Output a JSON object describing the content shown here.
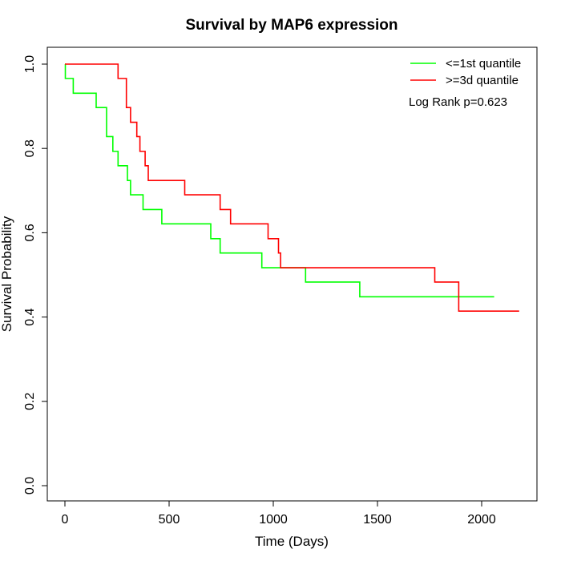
{
  "chart_data": {
    "type": "line",
    "title": "Survival by MAP6 expression",
    "xlabel": "Time (Days)",
    "ylabel": "Survival Probability",
    "xlim": [
      0,
      2180
    ],
    "ylim": [
      0,
      1.0
    ],
    "x_ticks": [
      0,
      500,
      1000,
      1500,
      2000
    ],
    "x_tick_labels": [
      "0",
      "500",
      "1000",
      "1500",
      "2000"
    ],
    "y_ticks": [
      0,
      0.2,
      0.4,
      0.6,
      0.8,
      1.0
    ],
    "y_tick_labels": [
      "0.0",
      "0.2",
      "0.4",
      "0.6",
      "0.8",
      "1.0"
    ],
    "grid": false,
    "legend_position": "top-right",
    "annotation": "Log Rank p=0.623",
    "series": [
      {
        "name": "<=1st quantile",
        "color": "#00ff00",
        "step": true,
        "points": [
          [
            0,
            1.0
          ],
          [
            2,
            0.966
          ],
          [
            40,
            0.931
          ],
          [
            150,
            0.897
          ],
          [
            200,
            0.828
          ],
          [
            230,
            0.793
          ],
          [
            255,
            0.759
          ],
          [
            300,
            0.724
          ],
          [
            315,
            0.69
          ],
          [
            375,
            0.655
          ],
          [
            465,
            0.621
          ],
          [
            700,
            0.586
          ],
          [
            745,
            0.552
          ],
          [
            945,
            0.517
          ],
          [
            1155,
            0.483
          ],
          [
            1415,
            0.448
          ],
          [
            2060,
            0.448
          ]
        ]
      },
      {
        "name": ">=3d quantile",
        "color": "#ff0000",
        "step": true,
        "points": [
          [
            0,
            1.0
          ],
          [
            255,
            0.966
          ],
          [
            295,
            0.897
          ],
          [
            315,
            0.862
          ],
          [
            345,
            0.828
          ],
          [
            360,
            0.793
          ],
          [
            385,
            0.759
          ],
          [
            400,
            0.724
          ],
          [
            575,
            0.69
          ],
          [
            745,
            0.655
          ],
          [
            795,
            0.621
          ],
          [
            975,
            0.586
          ],
          [
            1025,
            0.552
          ],
          [
            1035,
            0.517
          ],
          [
            1775,
            0.483
          ],
          [
            1890,
            0.414
          ],
          [
            2180,
            0.414
          ]
        ]
      }
    ]
  }
}
